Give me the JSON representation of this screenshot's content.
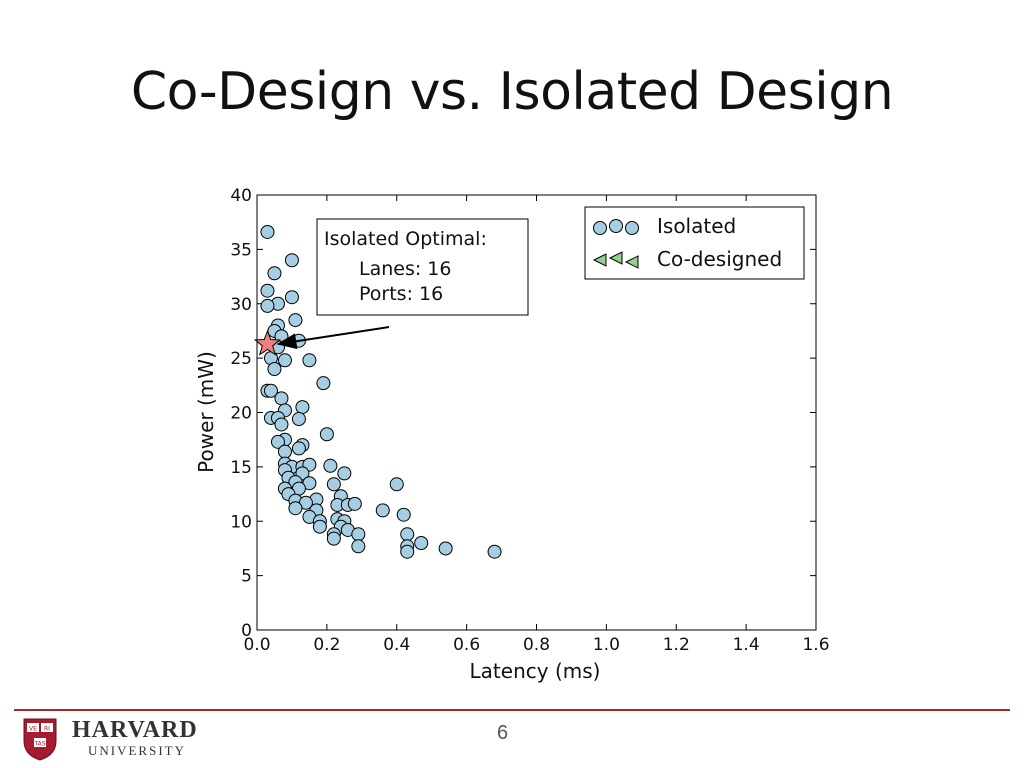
{
  "slide": {
    "title": "Co-Design vs. Isolated Design",
    "page_number": "6"
  },
  "footer": {
    "institution": "HARVARD",
    "subtitle": "UNIVERSITY",
    "shield_text": [
      "VE",
      "RI",
      "TAS"
    ]
  },
  "chart_data": {
    "type": "scatter",
    "xlabel": "Latency (ms)",
    "ylabel": "Power (mW)",
    "xlim": [
      0.0,
      1.6
    ],
    "ylim": [
      0,
      40
    ],
    "xticks": [
      "0.0",
      "0.2",
      "0.4",
      "0.6",
      "0.8",
      "1.0",
      "1.2",
      "1.4",
      "1.6"
    ],
    "yticks": [
      "0",
      "5",
      "10",
      "15",
      "20",
      "25",
      "30",
      "35",
      "40"
    ],
    "legend_position": "top-right",
    "legend": [
      {
        "label": "Isolated",
        "marker": "circle",
        "color": "#a6cee3"
      },
      {
        "label": "Co-designed",
        "marker": "triangle-left",
        "color": "#8fd18f"
      }
    ],
    "annotation": {
      "lines": [
        "Isolated Optimal:",
        "Lanes: 16",
        "Ports: 16"
      ],
      "point": [
        0.03,
        26.3
      ],
      "marker": "star",
      "color": "#f08080"
    },
    "series": [
      {
        "name": "Isolated",
        "color": "#a6cee3",
        "points": [
          [
            0.03,
            36.6
          ],
          [
            0.1,
            34.0
          ],
          [
            0.05,
            32.8
          ],
          [
            0.03,
            31.2
          ],
          [
            0.1,
            30.6
          ],
          [
            0.06,
            30.0
          ],
          [
            0.03,
            29.8
          ],
          [
            0.11,
            28.5
          ],
          [
            0.06,
            28.0
          ],
          [
            0.05,
            27.5
          ],
          [
            0.07,
            27.0
          ],
          [
            0.12,
            26.6
          ],
          [
            0.06,
            26.0
          ],
          [
            0.04,
            25.0
          ],
          [
            0.08,
            24.8
          ],
          [
            0.15,
            24.8
          ],
          [
            0.05,
            24.0
          ],
          [
            0.19,
            22.7
          ],
          [
            0.03,
            22.0
          ],
          [
            0.04,
            22.0
          ],
          [
            0.07,
            21.3
          ],
          [
            0.08,
            20.2
          ],
          [
            0.13,
            20.5
          ],
          [
            0.04,
            19.5
          ],
          [
            0.06,
            19.5
          ],
          [
            0.12,
            19.4
          ],
          [
            0.07,
            18.9
          ],
          [
            0.2,
            18.0
          ],
          [
            0.08,
            17.5
          ],
          [
            0.06,
            17.3
          ],
          [
            0.13,
            17.0
          ],
          [
            0.12,
            16.7
          ],
          [
            0.08,
            16.4
          ],
          [
            0.08,
            15.3
          ],
          [
            0.1,
            15.0
          ],
          [
            0.13,
            15.0
          ],
          [
            0.15,
            15.2
          ],
          [
            0.21,
            15.1
          ],
          [
            0.08,
            14.7
          ],
          [
            0.13,
            14.4
          ],
          [
            0.25,
            14.4
          ],
          [
            0.09,
            14.0
          ],
          [
            0.11,
            13.6
          ],
          [
            0.15,
            13.5
          ],
          [
            0.22,
            13.4
          ],
          [
            0.08,
            13.0
          ],
          [
            0.12,
            13.0
          ],
          [
            0.4,
            13.4
          ],
          [
            0.09,
            12.5
          ],
          [
            0.17,
            12.0
          ],
          [
            0.24,
            12.3
          ],
          [
            0.11,
            11.9
          ],
          [
            0.14,
            11.7
          ],
          [
            0.23,
            11.5
          ],
          [
            0.26,
            11.5
          ],
          [
            0.28,
            11.6
          ],
          [
            0.11,
            11.2
          ],
          [
            0.17,
            11.0
          ],
          [
            0.36,
            11.0
          ],
          [
            0.42,
            10.6
          ],
          [
            0.15,
            10.4
          ],
          [
            0.18,
            10.0
          ],
          [
            0.23,
            10.2
          ],
          [
            0.25,
            10.0
          ],
          [
            0.18,
            9.5
          ],
          [
            0.24,
            9.5
          ],
          [
            0.26,
            9.2
          ],
          [
            0.22,
            8.8
          ],
          [
            0.29,
            8.8
          ],
          [
            0.43,
            8.8
          ],
          [
            0.22,
            8.4
          ],
          [
            0.47,
            8.0
          ],
          [
            0.29,
            7.7
          ],
          [
            0.43,
            7.7
          ],
          [
            0.43,
            7.2
          ],
          [
            0.54,
            7.5
          ],
          [
            0.68,
            7.2
          ]
        ]
      },
      {
        "name": "Co-designed",
        "color": "#8fd18f",
        "points": []
      }
    ]
  }
}
